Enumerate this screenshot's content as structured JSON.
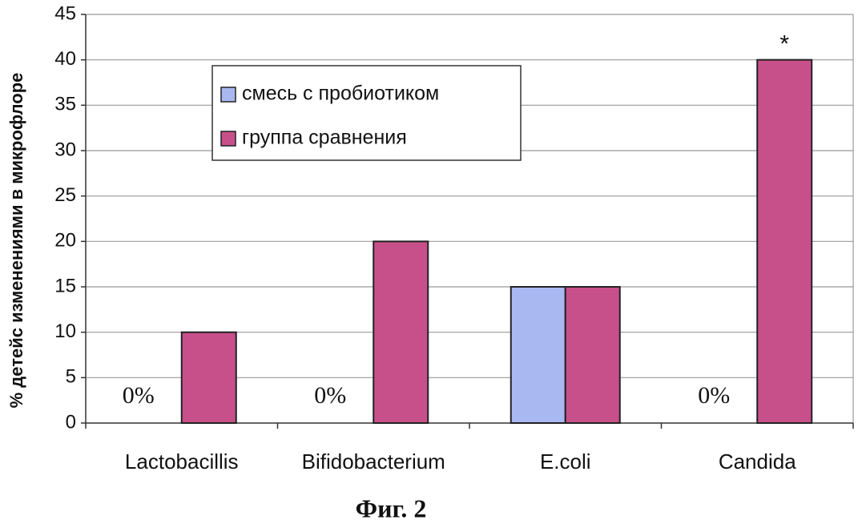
{
  "chart_data": {
    "type": "bar",
    "ylabel": "% детейс изменениями в микрофлоре",
    "caption": "Фиг. 2",
    "annotation": "*",
    "categories": [
      "Lactobacillis",
      "Bifidobacterium",
      "E.coli",
      "Candida"
    ],
    "series": [
      {
        "name": "смесь с пробиотиком",
        "color": "#a9b8f0",
        "values": [
          0,
          0,
          15,
          0
        ],
        "value_labels": [
          "0%",
          "0%",
          null,
          "0%"
        ]
      },
      {
        "name": "группа сравнения",
        "color": "#c8508a",
        "values": [
          10,
          20,
          15,
          40
        ]
      }
    ],
    "ylim": [
      0,
      45
    ],
    "yticks": [
      0,
      5,
      10,
      15,
      20,
      25,
      30,
      35,
      40,
      45
    ],
    "grid": true
  }
}
